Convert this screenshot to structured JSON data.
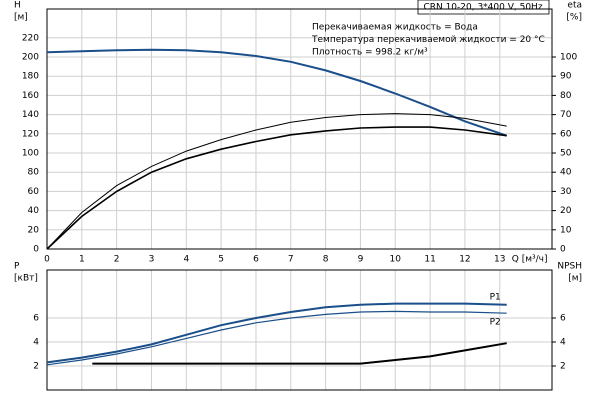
{
  "chart_data": [
    {
      "type": "line",
      "title": "CRN 10-20, 3*400 V, 50Hz",
      "annotations": [
        "Перекачиваемая жидкость = Вода",
        "Температура перекачиваемой жидкости = 20 °C",
        "Плотность = 998.2 кг/м³"
      ],
      "ylabel": "H",
      "yunit": "[м]",
      "y2label": "eta",
      "y2unit": "[%]",
      "xlabel": "Q [м³/ч]",
      "x": [
        0,
        1,
        2,
        3,
        4,
        5,
        6,
        7,
        8,
        9,
        10,
        11,
        12,
        13.2
      ],
      "xlim": [
        0,
        14.5
      ],
      "xticks": [
        0,
        1,
        2,
        3,
        4,
        5,
        6,
        7,
        8,
        9,
        10,
        11,
        12,
        13
      ],
      "ylim": [
        0,
        250
      ],
      "yticks": [
        0,
        20,
        40,
        60,
        80,
        100,
        120,
        140,
        160,
        180,
        200,
        220
      ],
      "y2lim": [
        0,
        125
      ],
      "y2ticks": [
        0,
        10,
        20,
        30,
        40,
        50,
        60,
        70,
        80,
        90,
        100
      ],
      "grid": true,
      "series": [
        {
          "color": "#1b4f8a",
          "width": 2,
          "values": [
            205,
            206,
            207,
            207.5,
            207,
            205,
            201,
            195,
            186,
            175,
            162,
            148,
            133,
            118
          ]
        },
        {
          "color": "#000000",
          "width": 1,
          "axis": "y2",
          "values": [
            0,
            19,
            33,
            43,
            51,
            57,
            62,
            66,
            68.5,
            70,
            70.5,
            70,
            68,
            64
          ]
        },
        {
          "color": "#000000",
          "width": 1.6,
          "axis": "y2",
          "values": [
            0,
            17,
            30,
            40,
            47,
            52,
            56,
            59.5,
            61.5,
            63,
            63.5,
            63.5,
            62,
            59
          ]
        }
      ]
    },
    {
      "type": "line",
      "ylabel": "P",
      "yunit": "[кВт]",
      "y2label": "NPSH",
      "y2unit": "[м]",
      "x": [
        0,
        1,
        2,
        3,
        4,
        5,
        6,
        7,
        8,
        9,
        10,
        11,
        12,
        13.2
      ],
      "xlim": [
        0,
        14.5
      ],
      "ylim": [
        0,
        10
      ],
      "yticks": [
        2,
        4,
        6
      ],
      "y2lim": [
        0,
        10
      ],
      "y2ticks": [
        2,
        4,
        6
      ],
      "grid": true,
      "series": [
        {
          "name": "P1",
          "color": "#1b4f8a",
          "width": 2,
          "values": [
            2.3,
            2.7,
            3.2,
            3.8,
            4.6,
            5.4,
            6.0,
            6.5,
            6.9,
            7.1,
            7.2,
            7.2,
            7.2,
            7.1
          ]
        },
        {
          "name": "P2",
          "color": "#1b4f8a",
          "width": 1.2,
          "values": [
            2.1,
            2.5,
            3.0,
            3.6,
            4.3,
            5.0,
            5.6,
            6.0,
            6.3,
            6.5,
            6.55,
            6.5,
            6.5,
            6.4
          ]
        },
        {
          "color": "#000000",
          "width": 2,
          "axis": "y2",
          "x": [
            1.3,
            9,
            10,
            11,
            12,
            13.2
          ],
          "values": [
            2.2,
            2.2,
            2.5,
            2.8,
            3.3,
            3.9
          ]
        }
      ]
    }
  ]
}
